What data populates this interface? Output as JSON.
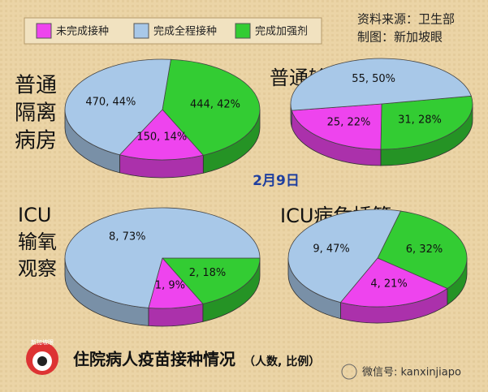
{
  "legend": {
    "labels": [
      "未完成接种",
      "完成全程接种",
      "完成加强剂"
    ],
    "colors": [
      "#ee44ee",
      "#a8c8e8",
      "#33cc33"
    ]
  },
  "source": "资料来源：卫生部",
  "credit": "制图：新加坡眼",
  "date": "2月9日",
  "footer_title": "住院病人疫苗接种情况",
  "footer_note": "（人数, 比例）",
  "logo_text": "新加坡眼",
  "watermark": "微信号: kanxinjiapo",
  "chart_data": [
    {
      "type": "pie",
      "title_lines": [
        "普通",
        "隔离",
        "病房"
      ],
      "values": [
        150,
        470,
        444
      ],
      "value_labels": [
        "150, 14%",
        "470, 44%",
        "444, 42%"
      ]
    },
    {
      "type": "pie",
      "title_lines": [
        "普通输氧"
      ],
      "values": [
        25,
        55,
        31
      ],
      "value_labels": [
        "25, 22%",
        "55, 50%",
        "31, 28%"
      ]
    },
    {
      "type": "pie",
      "title_lines": [
        "ICU",
        "输氧",
        "观察"
      ],
      "values": [
        1,
        8,
        2
      ],
      "value_labels": [
        "1, 9%",
        "8, 73%",
        "2, 18%"
      ]
    },
    {
      "type": "pie",
      "title_lines": [
        "ICU病危插管"
      ],
      "values": [
        4,
        9,
        6
      ],
      "value_labels": [
        "4, 21%",
        "9, 47%",
        "6, 32%"
      ]
    }
  ]
}
